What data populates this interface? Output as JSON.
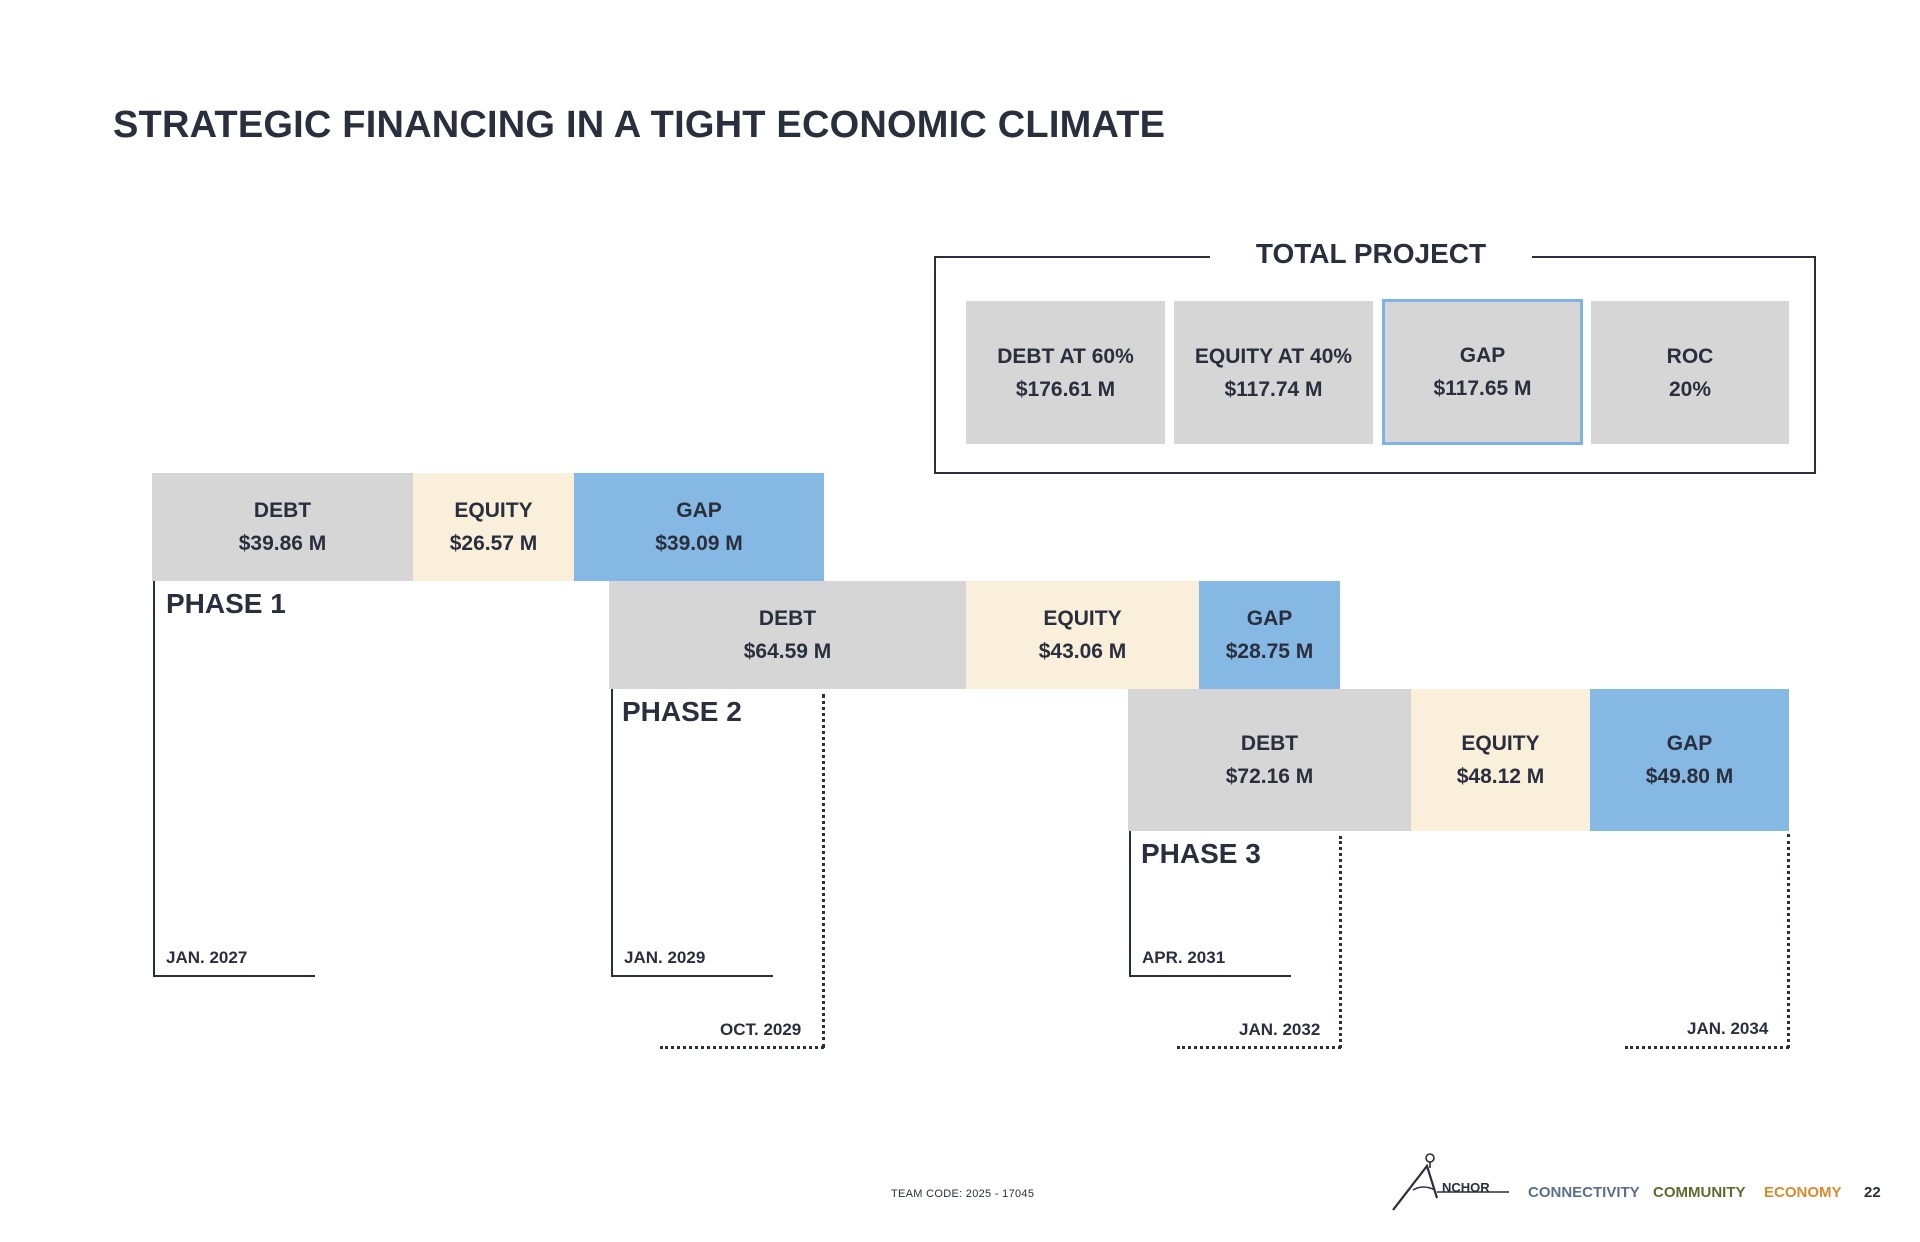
{
  "title": "STRATEGIC FINANCING IN A TIGHT ECONOMIC CLIMATE",
  "total_project": {
    "title": "TOTAL PROJECT",
    "boxes": [
      {
        "label": "DEBT AT 60%",
        "value": "$176.61 M"
      },
      {
        "label": "EQUITY AT 40%",
        "value": "$117.74 M"
      },
      {
        "label": "GAP",
        "value": "$117.65 M"
      },
      {
        "label": "ROC",
        "value": "20%"
      }
    ]
  },
  "phases": [
    {
      "label": "PHASE 1",
      "start_date": "JAN. 2027",
      "end_date": "",
      "debt": {
        "label": "DEBT",
        "value": "$39.86 M"
      },
      "equity": {
        "label": "EQUITY",
        "value": "$26.57 M"
      },
      "gap": {
        "label": "GAP",
        "value": "$39.09 M"
      }
    },
    {
      "label": "PHASE 2",
      "start_date": "JAN. 2029",
      "end_date": "OCT. 2029",
      "debt": {
        "label": "DEBT",
        "value": "$64.59 M"
      },
      "equity": {
        "label": "EQUITY",
        "value": "$43.06 M"
      },
      "gap": {
        "label": "GAP",
        "value": "$28.75 M"
      }
    },
    {
      "label": "PHASE 3",
      "start_date": "APR. 2031",
      "end_date": "JAN. 2032",
      "debt": {
        "label": "DEBT",
        "value": "$72.16 M"
      },
      "equity": {
        "label": "EQUITY",
        "value": "$48.12 M"
      },
      "gap": {
        "label": "GAP",
        "value": "$49.80 M"
      }
    }
  ],
  "final_date": "JAN. 2034",
  "colors": {
    "debt": "#d6d6d6",
    "equity": "#f9efdb",
    "gap": "#85b8e3",
    "text": "#2a2f3d"
  },
  "footer": {
    "team_code": "TEAM CODE: 2025 - 17045",
    "logo_text": "NCHOR",
    "tags": [
      {
        "text": "CONNECTIVITY",
        "color": "#5b6f8a"
      },
      {
        "text": "COMMUNITY",
        "color": "#5d6b2c"
      },
      {
        "text": "ECONOMY",
        "color": "#d9892e"
      }
    ],
    "page_number": "22"
  }
}
